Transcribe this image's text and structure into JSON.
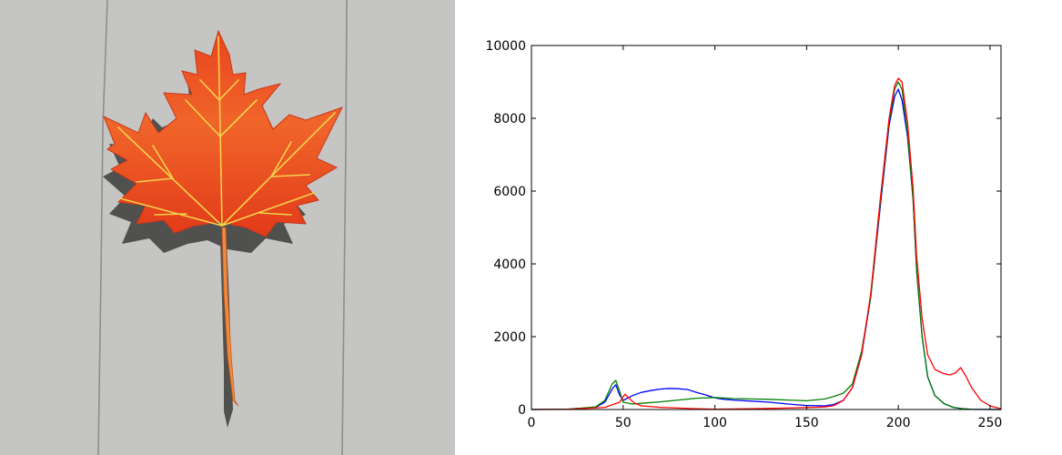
{
  "photo": {
    "subject": "maple-leaf"
  },
  "chart_data": {
    "type": "line",
    "title": "",
    "xlabel": "",
    "ylabel": "",
    "xlim": [
      0,
      256
    ],
    "ylim": [
      0,
      10000
    ],
    "x_ticks": [
      "0",
      "50",
      "100",
      "150",
      "200",
      "250"
    ],
    "y_ticks": [
      "0",
      "2000",
      "4000",
      "6000",
      "8000",
      "10000"
    ],
    "grid": false,
    "series": [
      {
        "color": "#0000ff",
        "points": [
          [
            0,
            0
          ],
          [
            20,
            10
          ],
          [
            35,
            60
          ],
          [
            40,
            200
          ],
          [
            44,
            560
          ],
          [
            46,
            680
          ],
          [
            48,
            400
          ],
          [
            50,
            250
          ],
          [
            55,
            380
          ],
          [
            60,
            470
          ],
          [
            65,
            520
          ],
          [
            70,
            560
          ],
          [
            75,
            580
          ],
          [
            80,
            570
          ],
          [
            85,
            550
          ],
          [
            90,
            470
          ],
          [
            95,
            400
          ],
          [
            100,
            320
          ],
          [
            105,
            280
          ],
          [
            110,
            260
          ],
          [
            120,
            230
          ],
          [
            130,
            200
          ],
          [
            140,
            150
          ],
          [
            150,
            110
          ],
          [
            160,
            100
          ],
          [
            165,
            140
          ],
          [
            170,
            250
          ],
          [
            175,
            600
          ],
          [
            180,
            1500
          ],
          [
            185,
            3100
          ],
          [
            190,
            5500
          ],
          [
            195,
            7800
          ],
          [
            198,
            8600
          ],
          [
            200,
            8800
          ],
          [
            202,
            8500
          ],
          [
            205,
            7500
          ],
          [
            208,
            5800
          ],
          [
            210,
            3800
          ],
          [
            213,
            2000
          ],
          [
            216,
            900
          ],
          [
            220,
            380
          ],
          [
            225,
            160
          ],
          [
            230,
            60
          ],
          [
            235,
            20
          ],
          [
            240,
            5
          ],
          [
            256,
            0
          ]
        ]
      },
      {
        "color": "#008000",
        "points": [
          [
            0,
            0
          ],
          [
            20,
            10
          ],
          [
            35,
            70
          ],
          [
            40,
            250
          ],
          [
            44,
            700
          ],
          [
            46,
            800
          ],
          [
            48,
            500
          ],
          [
            50,
            200
          ],
          [
            55,
            150
          ],
          [
            60,
            170
          ],
          [
            70,
            210
          ],
          [
            80,
            260
          ],
          [
            90,
            310
          ],
          [
            100,
            330
          ],
          [
            110,
            300
          ],
          [
            120,
            290
          ],
          [
            130,
            280
          ],
          [
            140,
            260
          ],
          [
            150,
            240
          ],
          [
            160,
            290
          ],
          [
            165,
            360
          ],
          [
            170,
            450
          ],
          [
            175,
            700
          ],
          [
            180,
            1600
          ],
          [
            185,
            3100
          ],
          [
            190,
            5600
          ],
          [
            195,
            7900
          ],
          [
            198,
            8800
          ],
          [
            200,
            9000
          ],
          [
            202,
            8800
          ],
          [
            205,
            7600
          ],
          [
            208,
            5800
          ],
          [
            210,
            3800
          ],
          [
            213,
            2000
          ],
          [
            216,
            900
          ],
          [
            220,
            380
          ],
          [
            225,
            160
          ],
          [
            230,
            60
          ],
          [
            235,
            20
          ],
          [
            240,
            5
          ],
          [
            256,
            0
          ]
        ]
      },
      {
        "color": "#ff0000",
        "points": [
          [
            0,
            0
          ],
          [
            20,
            5
          ],
          [
            40,
            60
          ],
          [
            48,
            200
          ],
          [
            51,
            420
          ],
          [
            53,
            320
          ],
          [
            56,
            180
          ],
          [
            60,
            100
          ],
          [
            70,
            60
          ],
          [
            80,
            40
          ],
          [
            90,
            20
          ],
          [
            100,
            10
          ],
          [
            120,
            20
          ],
          [
            140,
            40
          ],
          [
            160,
            70
          ],
          [
            165,
            110
          ],
          [
            170,
            250
          ],
          [
            175,
            600
          ],
          [
            180,
            1500
          ],
          [
            185,
            3200
          ],
          [
            190,
            5700
          ],
          [
            195,
            8000
          ],
          [
            198,
            8900
          ],
          [
            200,
            9100
          ],
          [
            202,
            9000
          ],
          [
            205,
            7900
          ],
          [
            208,
            6100
          ],
          [
            210,
            4200
          ],
          [
            213,
            2500
          ],
          [
            216,
            1500
          ],
          [
            220,
            1100
          ],
          [
            224,
            1000
          ],
          [
            228,
            950
          ],
          [
            231,
            1000
          ],
          [
            234,
            1150
          ],
          [
            237,
            900
          ],
          [
            240,
            600
          ],
          [
            245,
            250
          ],
          [
            250,
            100
          ],
          [
            256,
            20
          ]
        ]
      }
    ]
  }
}
